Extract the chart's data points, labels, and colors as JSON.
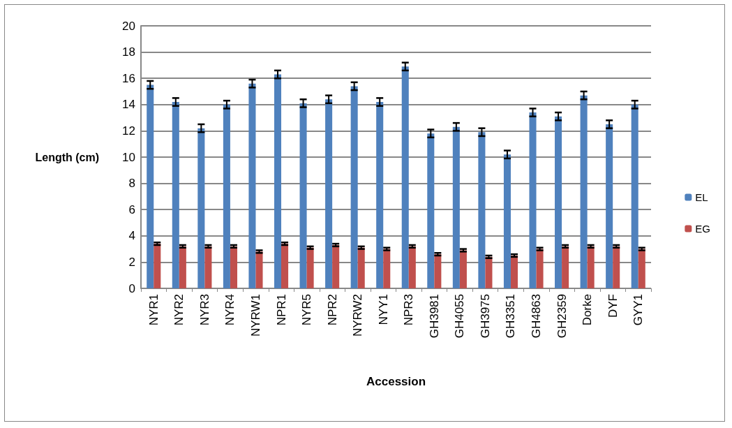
{
  "chart_data": {
    "type": "bar",
    "xlabel": "Accession",
    "ylabel": "Length (cm)",
    "categories": [
      "NYR1",
      "NYR2",
      "NYR3",
      "NYR4",
      "NYRW1",
      "NPR1",
      "NYR5",
      "NPR2",
      "NYRW2",
      "NYY1",
      "NPR3",
      "GH3981",
      "GH4055",
      "GH3975",
      "GH3351",
      "GH4863",
      "GH2359",
      "Dorke",
      "DYF",
      "GYY1"
    ],
    "series": [
      {
        "name": "EL",
        "color": "#4f81bd",
        "values": [
          15.5,
          14.2,
          12.2,
          14.0,
          15.6,
          16.3,
          14.1,
          14.4,
          15.4,
          14.2,
          16.9,
          11.8,
          12.3,
          11.9,
          10.2,
          13.4,
          13.1,
          14.7,
          12.5,
          14.0
        ],
        "errors": [
          0.3,
          0.3,
          0.3,
          0.3,
          0.3,
          0.3,
          0.3,
          0.3,
          0.3,
          0.3,
          0.3,
          0.3,
          0.3,
          0.3,
          0.3,
          0.3,
          0.3,
          0.3,
          0.3,
          0.3
        ]
      },
      {
        "name": "EG",
        "color": "#c0504d",
        "values": [
          3.4,
          3.2,
          3.2,
          3.2,
          2.8,
          3.4,
          3.1,
          3.3,
          3.1,
          3.0,
          3.2,
          2.6,
          2.9,
          2.4,
          2.5,
          3.0,
          3.2,
          3.2,
          3.2,
          3.0
        ],
        "errors": [
          0.1,
          0.1,
          0.1,
          0.1,
          0.1,
          0.1,
          0.1,
          0.1,
          0.1,
          0.1,
          0.1,
          0.1,
          0.1,
          0.1,
          0.1,
          0.1,
          0.1,
          0.1,
          0.1,
          0.1
        ]
      }
    ],
    "ylim": [
      0,
      20
    ],
    "yticks": [
      0,
      2,
      4,
      6,
      8,
      10,
      12,
      14,
      16,
      18,
      20
    ],
    "grid": "y",
    "legend": "right"
  }
}
